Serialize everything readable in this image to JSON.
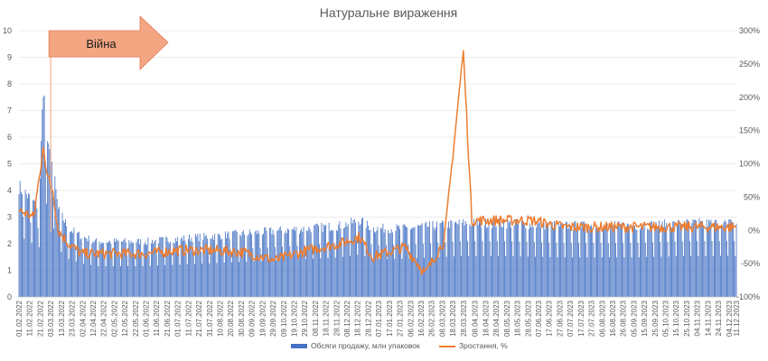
{
  "chart_data": {
    "type": "bar+line",
    "title": "Натуральне вираження",
    "annotation": {
      "text": "Війна",
      "date": "03.03.2022"
    },
    "y_left": {
      "min": 0,
      "max": 10,
      "ticks": [
        "0",
        "1",
        "2",
        "3",
        "4",
        "5",
        "6",
        "7",
        "8",
        "9",
        "10"
      ]
    },
    "y_right": {
      "min": -100,
      "max": 300,
      "ticks": [
        "-100%",
        "-50%",
        "0%",
        "50%",
        "100%",
        "150%",
        "200%",
        "250%",
        "300%"
      ]
    },
    "x_start": "01.02.2022",
    "x_end": "11.12.2023",
    "x_ticks": [
      "01.02.2022",
      "11.02.2022",
      "21.02.2022",
      "03.03.2022",
      "13.03.2022",
      "23.03.2022",
      "02.04.2022",
      "12.04.2022",
      "22.04.2022",
      "02.05.2022",
      "12.05.2022",
      "22.05.2022",
      "01.06.2022",
      "11.06.2022",
      "21.06.2022",
      "01.07.2022",
      "11.07.2022",
      "21.07.2022",
      "31.07.2022",
      "10.08.2022",
      "20.08.2022",
      "30.08.2022",
      "09.09.2022",
      "19.09.2022",
      "29.09.2022",
      "09.10.2022",
      "19.10.2022",
      "29.10.2022",
      "08.11.2022",
      "18.11.2022",
      "28.11.2022",
      "08.12.2022",
      "18.12.2022",
      "28.12.2022",
      "07.01.2023",
      "17.01.2023",
      "27.01.2023",
      "06.02.2023",
      "16.02.2023",
      "26.02.2023",
      "08.03.2023",
      "18.03.2023",
      "28.03.2023",
      "08.04.2023",
      "18.04.2023",
      "28.04.2023",
      "08.05.2023",
      "18.05.2023",
      "28.05.2023",
      "07.06.2023",
      "17.06.2023",
      "27.06.2023",
      "07.07.2023",
      "17.07.2023",
      "27.07.2023",
      "06.08.2023",
      "16.08.2023",
      "26.08.2023",
      "05.09.2023",
      "15.09.2023",
      "25.09.2023",
      "05.10.2023",
      "15.10.2023",
      "25.10.2023",
      "04.11.2023",
      "14.11.2023",
      "24.11.2023",
      "04.12.2023",
      "11.12.2023"
    ],
    "series": [
      {
        "name": "Обсяги продажу, млн упаковок",
        "kind": "bar",
        "axis": "left",
        "color": "#4472c4",
        "description": "daily values, weekly pattern",
        "points": [
          [
            "01.02.2022",
            4.2
          ],
          [
            "10.02.2022",
            3.8
          ],
          [
            "20.02.2022",
            3.4
          ],
          [
            "24.02.2022",
            8.1
          ],
          [
            "26.02.2022",
            6.8
          ],
          [
            "01.03.2022",
            5.5
          ],
          [
            "05.03.2022",
            5.0
          ],
          [
            "10.03.2022",
            3.3
          ],
          [
            "20.03.2022",
            2.6
          ],
          [
            "01.04.2022",
            2.3
          ],
          [
            "15.04.2022",
            2.1
          ],
          [
            "01.05.2022",
            2.1
          ],
          [
            "01.06.2022",
            2.1
          ],
          [
            "01.07.2022",
            2.2
          ],
          [
            "01.08.2022",
            2.3
          ],
          [
            "01.09.2022",
            2.4
          ],
          [
            "01.10.2022",
            2.5
          ],
          [
            "01.11.2022",
            2.6
          ],
          [
            "01.12.2022",
            2.7
          ],
          [
            "20.12.2022",
            2.9
          ],
          [
            "01.01.2023",
            2.6
          ],
          [
            "01.02.2023",
            2.6
          ],
          [
            "01.03.2023",
            2.7
          ],
          [
            "28.03.2023",
            2.8
          ],
          [
            "01.05.2023",
            2.8
          ],
          [
            "01.07.2023",
            2.7
          ],
          [
            "01.09.2023",
            2.7
          ],
          [
            "01.11.2023",
            2.8
          ],
          [
            "11.12.2023",
            2.8
          ]
        ]
      },
      {
        "name": "Зростання, %",
        "kind": "line",
        "axis": "right",
        "color": "#ed7d31",
        "points": [
          [
            "01.02.2022",
            30
          ],
          [
            "15.02.2022",
            20
          ],
          [
            "24.02.2022",
            125
          ],
          [
            "28.02.2022",
            80
          ],
          [
            "05.03.2022",
            60
          ],
          [
            "10.03.2022",
            0
          ],
          [
            "20.03.2022",
            -20
          ],
          [
            "01.04.2022",
            -35
          ],
          [
            "01.05.2022",
            -35
          ],
          [
            "01.06.2022",
            -35
          ],
          [
            "01.07.2022",
            -30
          ],
          [
            "01.08.2022",
            -30
          ],
          [
            "01.09.2022",
            -33
          ],
          [
            "01.10.2022",
            -45
          ],
          [
            "01.11.2022",
            -30
          ],
          [
            "01.12.2022",
            -20
          ],
          [
            "20.12.2022",
            -10
          ],
          [
            "01.01.2023",
            -40
          ],
          [
            "01.02.2023",
            -25
          ],
          [
            "20.02.2023",
            -65
          ],
          [
            "10.03.2023",
            -15
          ],
          [
            "28.03.2023",
            270
          ],
          [
            "05.04.2023",
            15
          ],
          [
            "01.05.2023",
            15
          ],
          [
            "01.06.2023",
            15
          ],
          [
            "01.07.2023",
            5
          ],
          [
            "01.08.2023",
            5
          ],
          [
            "01.09.2023",
            5
          ],
          [
            "01.10.2023",
            5
          ],
          [
            "01.11.2023",
            5
          ],
          [
            "11.12.2023",
            5
          ]
        ]
      }
    ],
    "legend_position": "bottom",
    "grid": true
  }
}
